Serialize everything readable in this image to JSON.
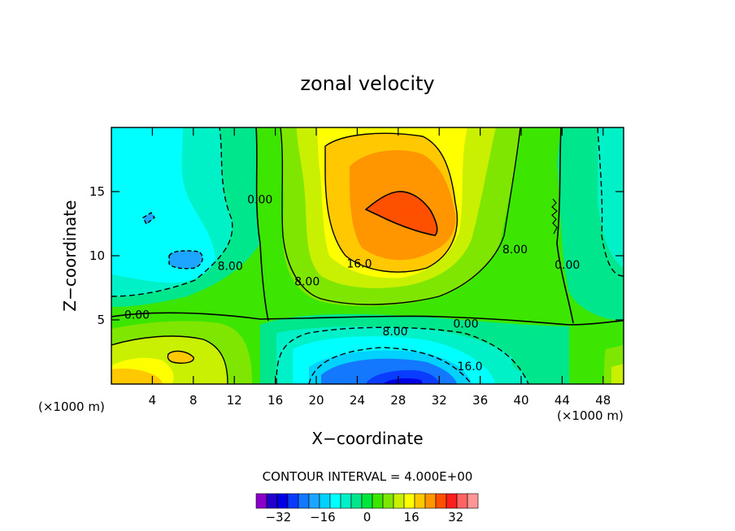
{
  "chart_data": {
    "type": "heatmap",
    "title": "zonal velocity",
    "xlabel": "X−coordinate",
    "ylabel": "Z−coordinate",
    "x_unit_left": "(×1000 m)",
    "x_unit_right": "(×1000 m)",
    "xlim": [
      0,
      50
    ],
    "ylim": [
      0,
      20
    ],
    "x_ticks": [
      4,
      8,
      12,
      16,
      20,
      24,
      28,
      32,
      36,
      40,
      44,
      48
    ],
    "x_tick_labels": [
      "4",
      "8",
      "12",
      "16",
      "20",
      "24",
      "28",
      "32",
      "36",
      "40",
      "44",
      "48"
    ],
    "y_ticks": [
      5,
      10,
      15
    ],
    "y_tick_labels": [
      "5",
      "10",
      "15"
    ],
    "contour_interval_text": "CONTOUR INTERVAL = 4.000E+00",
    "contour_labels": [
      {
        "text": "0.00",
        "x": 14.5,
        "z": 14.4
      },
      {
        "text": "8.00",
        "x": 11.6,
        "z": 9.2
      },
      {
        "text": "0.00",
        "x": 2.5,
        "z": 5.4
      },
      {
        "text": "16.0",
        "x": 24.2,
        "z": 9.4
      },
      {
        "text": "8.00",
        "x": 19.1,
        "z": 8.0
      },
      {
        "text": "8.00",
        "x": 39.4,
        "z": 10.5
      },
      {
        "text": "0.00",
        "x": 44.5,
        "z": 9.3
      },
      {
        "text": "0.00",
        "x": 34.6,
        "z": 4.7
      },
      {
        "text": "8.00",
        "x": 27.7,
        "z": 4.1
      },
      {
        "text": "16.0",
        "x": 35.0,
        "z": 1.4
      }
    ],
    "colorbar": {
      "levels": [
        -40,
        -36,
        -32,
        -28,
        -24,
        -20,
        -16,
        -12,
        -8,
        -4,
        0,
        4,
        8,
        12,
        16,
        20,
        24,
        28,
        32,
        36,
        40
      ],
      "colors": [
        "#8a00c8",
        "#2400cc",
        "#0000e6",
        "#0a3cff",
        "#1478ff",
        "#1ea5ff",
        "#00d2ff",
        "#00ffff",
        "#00f0c8",
        "#00e68c",
        "#00e63c",
        "#3ce600",
        "#7ee600",
        "#c8f000",
        "#ffff00",
        "#ffc800",
        "#ff9600",
        "#ff5000",
        "#ff1e1e",
        "#ff6464",
        "#ff9696"
      ],
      "tick_values": [
        -32,
        -16,
        0,
        16,
        32
      ],
      "tick_labels": [
        "−32",
        "−16",
        "0",
        "16",
        "32"
      ]
    },
    "features": [
      {
        "kind": "max",
        "x": 28,
        "z": 13.5,
        "value": 28
      },
      {
        "kind": "max",
        "x": 27,
        "z": 12,
        "value": 20
      },
      {
        "kind": "min",
        "x": 5,
        "z": 12,
        "value": -16
      },
      {
        "kind": "min",
        "x": 8,
        "z": 10,
        "value": -20
      },
      {
        "kind": "min",
        "x": 28,
        "z": 0.3,
        "value": -30
      },
      {
        "kind": "max",
        "x": 7,
        "z": 1.8,
        "value": 24
      },
      {
        "kind": "max",
        "x": 3,
        "z": 0.8,
        "value": 20
      }
    ]
  }
}
